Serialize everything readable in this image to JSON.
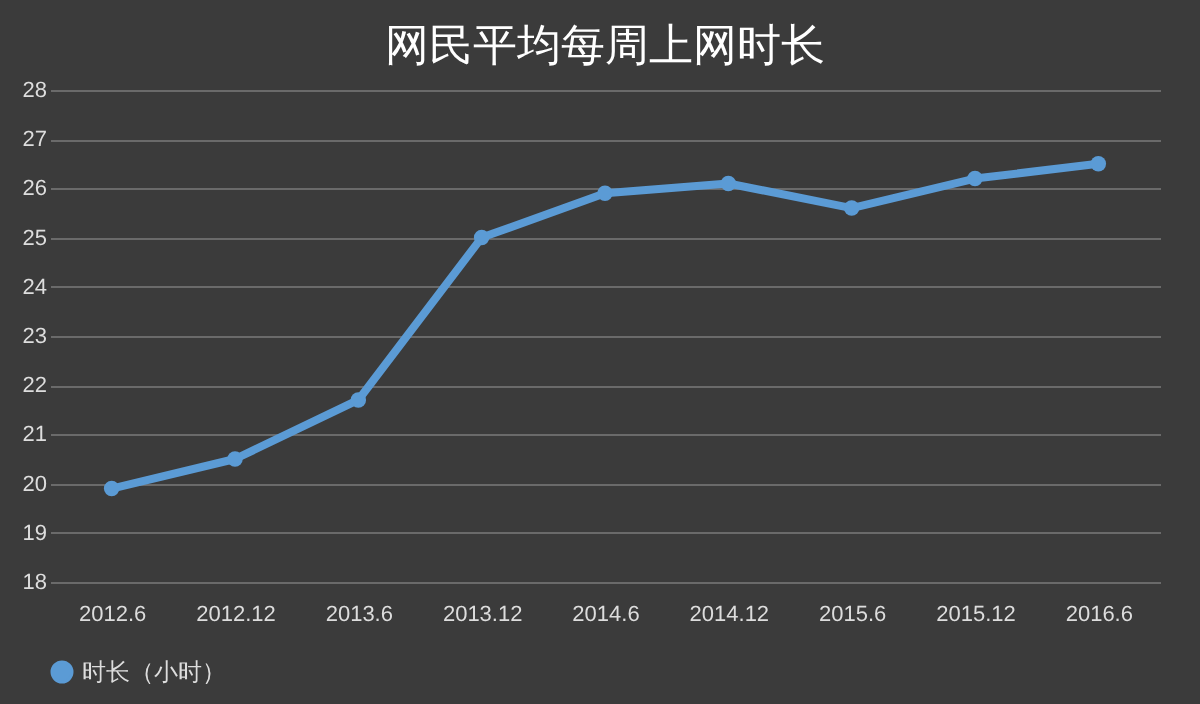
{
  "chart_data": {
    "type": "line",
    "title": "网民平均每周上网时长",
    "categories": [
      "2012.6",
      "2012.12",
      "2013.6",
      "2013.12",
      "2014.6",
      "2014.12",
      "2015.6",
      "2015.12",
      "2016.6"
    ],
    "series": [
      {
        "name": "时长（小时）",
        "color": "#5b9bd5",
        "values": [
          19.9,
          20.5,
          21.7,
          25.0,
          25.9,
          26.1,
          25.6,
          26.2,
          26.5
        ]
      }
    ],
    "ylim": [
      18,
      28
    ],
    "yticks": [
      18,
      19,
      20,
      21,
      22,
      23,
      24,
      25,
      26,
      27,
      28
    ],
    "grid": "y",
    "legend": "bottom",
    "marker": "circle",
    "line_style": "solid"
  }
}
